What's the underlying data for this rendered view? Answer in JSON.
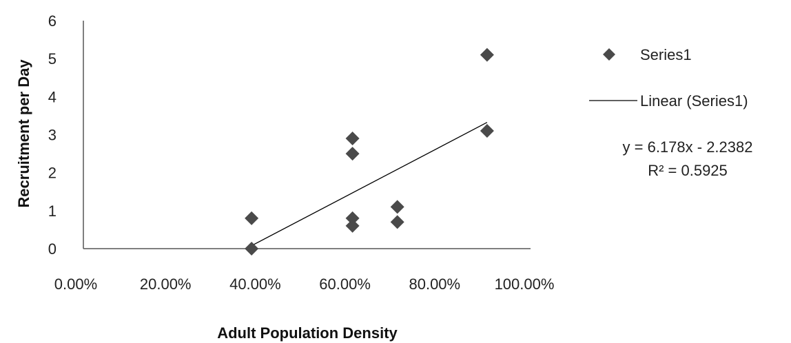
{
  "chart_data": {
    "type": "scatter",
    "xlabel": "Adult Population Density",
    "ylabel": "Recruitment per Day",
    "xlim": [
      0,
      1
    ],
    "ylim": [
      0,
      6
    ],
    "x_tick_labels": [
      "0.00%",
      "20.00%",
      "40.00%",
      "60.00%",
      "80.00%",
      "100.00%"
    ],
    "y_tick_labels": [
      "0",
      "1",
      "2",
      "3",
      "4",
      "5",
      "6"
    ],
    "grid": false,
    "legend_position": "right",
    "series": [
      {
        "name": "Series1",
        "marker": "diamond",
        "color": "#4a4a4a",
        "points": [
          {
            "x": 0.375,
            "y": 0.0
          },
          {
            "x": 0.375,
            "y": 0.8
          },
          {
            "x": 0.6,
            "y": 0.6
          },
          {
            "x": 0.6,
            "y": 0.8
          },
          {
            "x": 0.6,
            "y": 2.5
          },
          {
            "x": 0.6,
            "y": 2.9
          },
          {
            "x": 0.7,
            "y": 0.7
          },
          {
            "x": 0.7,
            "y": 1.1
          },
          {
            "x": 0.9,
            "y": 3.1
          },
          {
            "x": 0.9,
            "y": 5.1
          }
        ]
      }
    ],
    "trendline": {
      "name": "Linear (Series1)",
      "slope": 6.178,
      "intercept": -2.2382,
      "x_start": 0.375,
      "x_end": 0.9,
      "equation": "y = 6.178x - 2.2382",
      "r_squared": "R² = 0.5925",
      "color": "#000000"
    }
  }
}
